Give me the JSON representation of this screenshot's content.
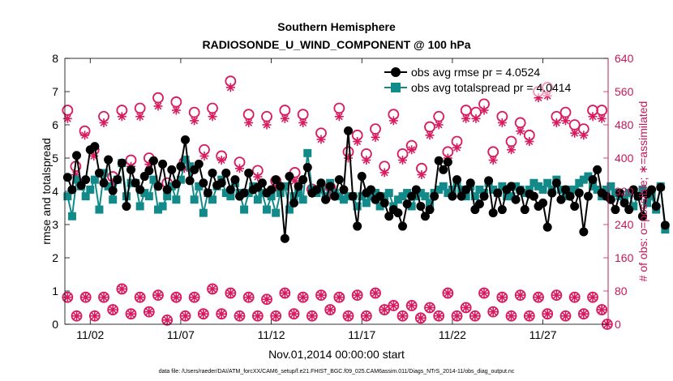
{
  "chart_data": {
    "type": "line",
    "title_line1": "Southern Hemisphere",
    "title_line2": "RADIOSONDE_U_WIND_COMPONENT @ 100 hPa",
    "xlabel": "Nov.01,2014 00:00:00 start",
    "ylabel": "rmse and totalspread",
    "ylabel_right": "# of obs: o=possible; ∗=assimilated",
    "footer": "data file: /Users/raeder/DAI/ATM_forcXX/CAM6_setup/f.e21.FHIST_BGC.f09_025.CAM6assim.011/Diags_NTrS_2014-11/obs_diag_output.nc",
    "xlim": [
      0.6,
      30.6
    ],
    "ylim": [
      0,
      8
    ],
    "ylim_right": [
      0,
      640
    ],
    "x_tick_values": [
      2,
      7,
      12,
      17,
      22,
      27
    ],
    "x_tick_labels": [
      "11/02",
      "11/07",
      "11/12",
      "11/17",
      "11/22",
      "11/27"
    ],
    "y_ticks": [
      "0",
      "1",
      "2",
      "3",
      "4",
      "5",
      "6",
      "7",
      "8"
    ],
    "y_ticks_right": [
      "0",
      "80",
      "160",
      "240",
      "320",
      "400",
      "480",
      "560",
      "640"
    ],
    "colors": {
      "rmse": "#000000",
      "spread": "#138a8a",
      "obs": "#d81b60"
    },
    "x_step_days": 0.25,
    "x_start": 0.75,
    "series": [
      {
        "name": "obs avg rmse pr = 4.0524",
        "values": [
          4.42,
          4.05,
          5.08,
          4.18,
          4.35,
          5.25,
          5.35,
          4.55,
          4.25,
          4.95,
          4.02,
          4.35,
          4.85,
          3.55,
          4.65,
          4.25,
          4.05,
          4.45,
          4.62,
          4.92,
          4.15,
          4.82,
          4.05,
          4.65,
          4.22,
          4.75,
          5.55,
          4.32,
          4.65,
          4.82,
          4.25,
          3.95,
          4.55,
          4.18,
          4.25,
          4.55,
          4.05,
          4.35,
          3.85,
          3.95,
          4.55,
          4.05,
          4.12,
          4.25,
          3.95,
          4.05,
          4.35,
          4.15,
          2.58,
          4.45,
          3.65,
          4.15,
          4.35,
          4.72,
          3.95,
          4.05,
          4.25,
          3.75,
          4.15,
          3.85,
          4.35,
          4.05,
          5.82,
          3.85,
          2.95,
          4.45,
          3.95,
          4.05,
          3.75,
          3.85,
          3.65,
          3.25,
          3.45,
          3.35,
          2.95,
          3.62,
          3.85,
          4.05,
          3.55,
          3.25,
          3.45,
          3.85,
          4.92,
          4.65,
          4.88,
          3.85,
          4.35,
          3.85,
          4.05,
          4.25,
          3.45,
          3.62,
          3.85,
          4.32,
          3.35,
          3.95,
          3.45,
          4.05,
          4.15,
          3.75,
          4.02,
          3.45,
          3.92,
          3.85,
          3.55,
          3.65,
          2.92,
          3.95,
          4.25,
          3.75,
          4.05,
          3.85,
          3.55,
          3.95,
          2.78,
          3.85,
          4.35,
          4.65,
          3.95,
          3.85,
          3.75,
          3.45,
          3.95,
          3.65,
          3.45,
          4.05,
          3.85,
          3.25,
          3.92,
          4.05,
          3.55,
          4.12,
          2.98
        ],
        "color": "#000000",
        "marker": "circle"
      },
      {
        "name": "obs avg totalspread pr = 4.0414",
        "values": [
          3.85,
          3.25,
          4.35,
          4.15,
          3.85,
          4.05,
          4.35,
          3.45,
          4.55,
          4.15,
          3.75,
          4.35,
          4.85,
          3.85,
          4.25,
          4.25,
          3.55,
          3.95,
          3.85,
          4.35,
          3.45,
          3.55,
          3.85,
          4.15,
          3.75,
          4.35,
          4.95,
          4.75,
          3.75,
          4.15,
          3.35,
          3.95,
          3.75,
          4.15,
          4.35,
          3.95,
          3.85,
          4.25,
          3.95,
          3.45,
          3.95,
          4.15,
          3.75,
          3.95,
          3.45,
          3.85,
          3.35,
          3.95,
          4.15,
          3.45,
          3.85,
          3.95,
          3.75,
          5.15,
          4.05,
          3.95,
          4.05,
          3.85,
          4.25,
          3.95,
          3.85,
          3.75,
          3.85,
          3.85,
          3.55,
          3.85,
          3.65,
          3.85,
          3.95,
          3.55,
          3.85,
          3.95,
          3.55,
          3.75,
          3.85,
          3.95,
          3.55,
          3.85,
          3.95,
          3.85,
          3.65,
          3.95,
          4.05,
          4.15,
          3.95,
          4.05,
          4.25,
          4.05,
          3.85,
          4.15,
          3.85,
          4.05,
          3.95,
          4.25,
          4.05,
          3.95,
          4.15,
          3.85,
          3.85,
          4.15,
          4.05,
          3.95,
          4.05,
          4.25,
          4.15,
          4.05,
          4.25,
          4.05,
          4.35,
          4.05,
          3.85,
          4.05,
          4.05,
          4.25,
          4.35,
          4.45,
          4.15,
          4.05,
          3.85,
          4.05,
          4.15,
          3.95,
          3.85,
          3.75,
          3.95,
          3.55,
          3.85,
          4.05,
          3.65,
          3.85,
          3.45,
          4.15,
          2.85
        ],
        "color": "#138a8a",
        "marker": "square"
      }
    ],
    "obs_possible_upper_x": [
      0.75,
      1.2,
      1.7,
      2.2,
      2.75,
      3.25,
      3.75,
      4.25,
      4.75,
      5.25,
      5.75,
      6.25,
      6.75,
      7.2,
      7.75,
      8.3,
      8.75,
      9.25,
      9.75,
      10.25,
      10.75,
      11.25,
      11.75,
      12.25,
      12.75,
      13.3,
      13.75,
      14.25,
      14.75,
      15.25,
      15.75,
      16.25,
      16.75,
      17.25,
      17.75,
      18.25,
      18.75,
      19.25,
      19.75,
      20.3,
      20.75,
      21.25,
      21.75,
      22.25,
      22.75,
      23.3,
      23.75,
      24.25,
      24.75,
      25.25,
      25.75,
      26.25,
      26.75,
      27.25,
      27.75,
      28.25,
      28.75,
      29.25,
      29.75,
      30.25
    ],
    "obs_possible_upper": [
      515,
      380,
      465,
      420,
      500,
      355,
      515,
      395,
      520,
      400,
      545,
      340,
      535,
      390,
      510,
      420,
      520,
      405,
      585,
      390,
      505,
      370,
      500,
      345,
      515,
      365,
      505,
      325,
      460,
      330,
      520,
      415,
      455,
      410,
      470,
      380,
      505,
      410,
      430,
      375,
      475,
      500,
      415,
      440,
      515,
      510,
      530,
      415,
      500,
      440,
      485,
      455,
      560,
      570,
      500,
      510,
      480,
      470,
      515,
      515
    ],
    "obs_assim_upper": [
      495,
      360,
      455,
      405,
      485,
      340,
      500,
      380,
      500,
      385,
      525,
      325,
      515,
      375,
      490,
      405,
      500,
      395,
      570,
      375,
      485,
      355,
      480,
      330,
      495,
      345,
      485,
      315,
      445,
      310,
      500,
      400,
      440,
      395,
      450,
      365,
      490,
      395,
      420,
      360,
      455,
      480,
      400,
      425,
      495,
      495,
      515,
      395,
      485,
      420,
      465,
      440,
      545,
      550,
      485,
      490,
      460,
      455,
      500,
      495
    ],
    "obs_possible_lower_x": [
      0.75,
      1.25,
      1.75,
      2.25,
      2.75,
      3.25,
      3.75,
      4.25,
      4.75,
      5.25,
      5.75,
      6.25,
      6.75,
      7.25,
      7.75,
      8.25,
      8.75,
      9.25,
      9.75,
      10.25,
      10.75,
      11.25,
      11.75,
      12.25,
      12.75,
      13.25,
      13.75,
      14.25,
      14.75,
      15.25,
      15.75,
      16.25,
      16.75,
      17.25,
      17.75,
      18.25,
      18.75,
      19.25,
      19.75,
      20.25,
      20.75,
      21.25,
      21.75,
      22.25,
      22.75,
      23.25,
      23.75,
      24.25,
      24.75,
      25.25,
      25.75,
      26.25,
      26.75,
      27.25,
      27.75,
      28.25,
      28.75,
      29.25,
      29.75,
      30.25,
      30.55
    ],
    "obs_possible_lower": [
      65,
      20,
      65,
      20,
      65,
      35,
      85,
      25,
      65,
      30,
      70,
      10,
      65,
      20,
      65,
      25,
      85,
      25,
      75,
      20,
      65,
      20,
      60,
      20,
      75,
      25,
      65,
      20,
      70,
      35,
      65,
      20,
      70,
      20,
      75,
      35,
      45,
      20,
      45,
      15,
      40,
      20,
      75,
      20,
      40,
      20,
      75,
      30,
      65,
      20,
      70,
      20,
      65,
      25,
      70,
      20,
      65,
      25,
      65,
      35,
      0
    ]
  }
}
